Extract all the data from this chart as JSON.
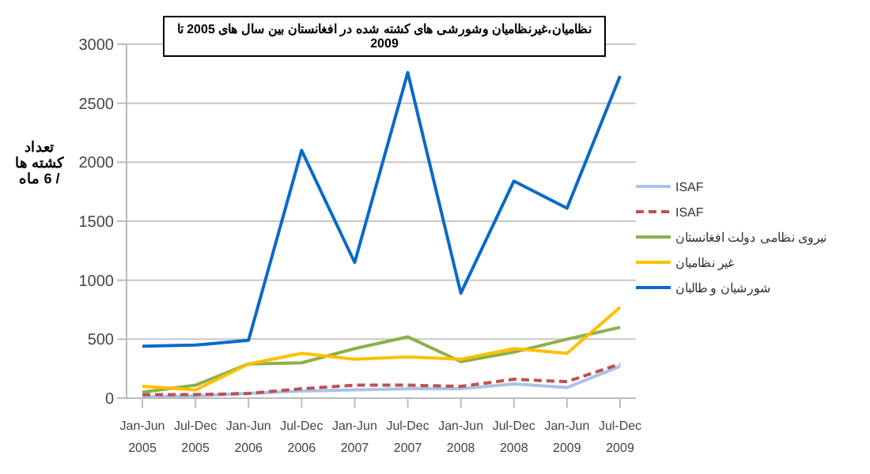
{
  "chart_data": {
    "type": "line",
    "title": "نظامیان،غیرنظامیان وشورشی های کشته شده در افغانستان بین سال های 2005 تا 2009",
    "ylabel": "تعداد کشته ها / 6 ماه",
    "categories": [
      "Jan-Jun 2005",
      "Jul-Dec 2005",
      "Jan-Jun 2006",
      "Jul-Dec 2006",
      "Jan-Jun 2007",
      "Jul-Dec 2007",
      "Jan-Jun 2008",
      "Jul-Dec 2008",
      "Jan-Jun 2009",
      "Jul-Dec 2009"
    ],
    "series": [
      {
        "name": "ISAF",
        "color": "#a8c4e6",
        "values": [
          10,
          20,
          40,
          60,
          70,
          80,
          80,
          120,
          90,
          270
        ]
      },
      {
        "name": "ISAF",
        "color": "#c0504d",
        "line_style": "dashed",
        "values": [
          30,
          30,
          40,
          80,
          110,
          110,
          100,
          160,
          140,
          290
        ]
      },
      {
        "name": "نیروی نظامی دولت افغانستان",
        "color": "#8db04a",
        "values": [
          50,
          110,
          290,
          300,
          420,
          520,
          310,
          390,
          500,
          600
        ]
      },
      {
        "name": "غیر نظامیان",
        "color": "#ffc000",
        "values": [
          100,
          70,
          290,
          380,
          330,
          350,
          330,
          420,
          380,
          770
        ]
      },
      {
        "name": "شورشیان و طالبان",
        "color": "#0a6ac8",
        "values": [
          440,
          450,
          490,
          2100,
          1150,
          2760,
          890,
          1840,
          1610,
          2730
        ]
      }
    ],
    "ylim": [
      0,
      3000
    ],
    "yticks": [
      0,
      500,
      1000,
      1500,
      2000,
      2500,
      3000
    ],
    "grid": "y",
    "legend": "right",
    "marker": "none",
    "line_style": "solid"
  }
}
